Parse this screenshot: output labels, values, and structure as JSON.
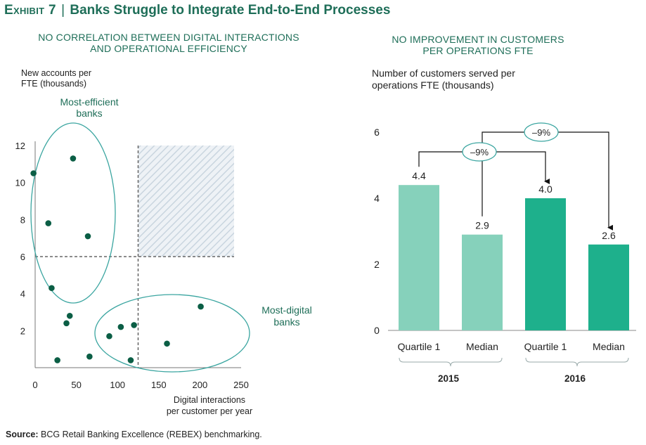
{
  "header": {
    "exhibit_label": "Exhibit 7",
    "separator": "|",
    "title": "Banks Struggle to Integrate End-to-End Processes"
  },
  "left_chart": {
    "subtitle_line1": "NO CORRELATION BETWEEN DIGITAL INTERACTIONS",
    "subtitle_line2": "AND OPERATIONAL EFFICIENCY",
    "ylabel_line1": "New accounts per",
    "ylabel_line2": "FTE (thousands)",
    "xlabel_line1": "Digital interactions",
    "xlabel_line2": "per customer per year",
    "annotation_efficient_line1": "Most-efficient",
    "annotation_efficient_line2": "banks",
    "annotation_digital_line1": "Most-digital",
    "annotation_digital_line2": "banks"
  },
  "right_chart": {
    "subtitle_line1": "NO IMPROVEMENT IN CUSTOMERS",
    "subtitle_line2": "PER OPERATIONS FTE",
    "ylabel_line1": "Number of customers served per",
    "ylabel_line2": "operations FTE (thousands)",
    "group_2015": "2015",
    "group_2016": "2016",
    "change_median": "–9%",
    "change_quartile": "–9%"
  },
  "footer": {
    "source_label": "Source:",
    "source_text": "BCG Retail Banking Excellence (REBEX) benchmarking."
  },
  "colors": {
    "accent": "#1e6e58",
    "dot": "#0b5e45",
    "bar_2015": "#86d1bb",
    "bar_2016": "#1eb08c",
    "ellipse": "#3aa5a0",
    "hatch": "#c9d5df"
  },
  "chart_data": [
    {
      "type": "scatter",
      "title": "NO CORRELATION BETWEEN DIGITAL INTERACTIONS AND OPERATIONAL EFFICIENCY",
      "xlabel": "Digital interactions per customer per year",
      "ylabel": "New accounts per FTE (thousands)",
      "xlim": [
        0,
        250
      ],
      "ylim": [
        0,
        12
      ],
      "xticks": [
        0,
        50,
        100,
        150,
        200,
        250
      ],
      "yticks": [
        2,
        4,
        6,
        8,
        10,
        12
      ],
      "threshold_x": 125,
      "threshold_y": 6,
      "grid": false,
      "points": [
        {
          "x": -2,
          "y": 10.5
        },
        {
          "x": 46,
          "y": 11.3
        },
        {
          "x": 16,
          "y": 7.8
        },
        {
          "x": 64,
          "y": 7.1
        },
        {
          "x": 20,
          "y": 4.3
        },
        {
          "x": 42,
          "y": 2.8
        },
        {
          "x": 38,
          "y": 2.4
        },
        {
          "x": 90,
          "y": 1.7
        },
        {
          "x": 104,
          "y": 2.2
        },
        {
          "x": 120,
          "y": 2.3
        },
        {
          "x": 201,
          "y": 3.3
        },
        {
          "x": 160,
          "y": 1.3
        },
        {
          "x": 27,
          "y": 0.4
        },
        {
          "x": 66,
          "y": 0.6
        },
        {
          "x": 116,
          "y": 0.4
        }
      ]
    },
    {
      "type": "bar",
      "title": "NO IMPROVEMENT IN CUSTOMERS PER OPERATIONS FTE",
      "ylabel": "Number of customers served per operations FTE (thousands)",
      "ylim": [
        0,
        6
      ],
      "yticks": [
        0,
        2,
        4,
        6
      ],
      "categories": [
        "Quartile 1",
        "Median",
        "Quartile 1",
        "Median"
      ],
      "groups": [
        "2015",
        "2015",
        "2016",
        "2016"
      ],
      "values": [
        4.4,
        2.9,
        4.0,
        2.6
      ],
      "value_labels": [
        "4.4",
        "2.9",
        "4.0",
        "2.6"
      ],
      "annotations": [
        {
          "from_category": 0,
          "to_category": 2,
          "label": "–9%"
        },
        {
          "from_category": 1,
          "to_category": 3,
          "label": "–9%"
        }
      ]
    }
  ]
}
